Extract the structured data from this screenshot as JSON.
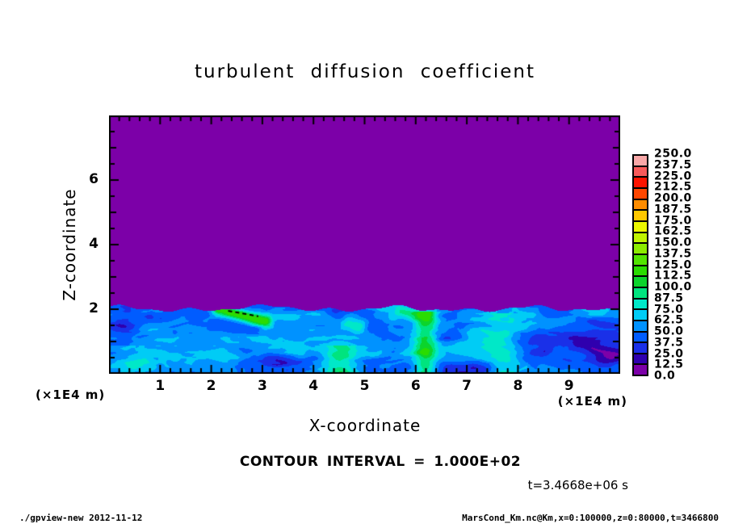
{
  "header": {
    "title": "turbulent diffusion coefficient"
  },
  "axes": {
    "x": {
      "label": "X-coordinate",
      "unit": "(×1E4 m)",
      "range": [
        0,
        10
      ],
      "major_tick_labels": [
        "1",
        "2",
        "3",
        "4",
        "5",
        "6",
        "7",
        "8",
        "9"
      ],
      "minor_step": 0.2
    },
    "z": {
      "label": "Z-coordinate",
      "unit": "(×1E4 m)",
      "range": [
        0,
        8
      ],
      "major_tick_labels": [
        "2",
        "4",
        "6"
      ],
      "major_ticks": [
        2,
        4,
        6
      ],
      "minor_step": 0.5
    }
  },
  "annotations": {
    "contour_interval": "CONTOUR INTERVAL = 1.000E+02",
    "time": "t=3.4668e+06 s"
  },
  "footer": {
    "left": "./gpview-new  2012-11-12",
    "right": "MarsCond_Km.nc@Km,x=0:100000,z=0:80000,t=3466800"
  },
  "colorbar": {
    "labels_top_to_bottom": [
      "250.0",
      "237.5",
      "225.0",
      "212.5",
      "200.0",
      "187.5",
      "175.0",
      "162.5",
      "150.0",
      "137.5",
      "125.0",
      "112.5",
      "100.0",
      "87.5",
      "75.0",
      "62.5",
      "50.0",
      "37.5",
      "25.0",
      "12.5",
      "0.0"
    ]
  },
  "chart_data": {
    "type": "heatmap",
    "title": "turbulent diffusion coefficient",
    "xlabel": "X-coordinate (×1E4 m)",
    "ylabel": "Z-coordinate (×1E4 m)",
    "xlim": [
      0,
      10
    ],
    "zlim": [
      0,
      8
    ],
    "grid": false,
    "legend_position": "right-colorbar",
    "contour_interval": 100.0,
    "time_label": "t=3.4668e+06 s",
    "levels": {
      "min": 0.0,
      "max": 250.0,
      "step": 12.5
    },
    "colormap_low_to_high": [
      "#7C00A8",
      "#2F00AE",
      "#1A30E8",
      "#005CFF",
      "#0092FF",
      "#00CCF5",
      "#00E8C8",
      "#00E47E",
      "#0CD42C",
      "#2ADC00",
      "#52E400",
      "#8CEC00",
      "#C0F400",
      "#ECF800",
      "#FFC800",
      "#FF8C00",
      "#FF4600",
      "#FF1400",
      "#F85A5A",
      "#F8A8A8"
    ],
    "field": {
      "background_value": 4,
      "boundary_layer_top_z": 2.02,
      "interface_waves": [
        {
          "a": 0.05,
          "k": 2.3,
          "p": 1.3
        },
        {
          "a": 0.05,
          "k": 4.7,
          "p": 0.5
        },
        {
          "a": 0.035,
          "k": 9.1,
          "p": 0.0
        }
      ],
      "interface_bump": {
        "x": 3.4,
        "sx": 0.28,
        "a": 0.1
      },
      "noise": {
        "base": 16,
        "fbm_amp": 55,
        "large_amp": 16,
        "warp_amp": 2.2,
        "scale_x": 1.3,
        "scale_z": 2.6,
        "large_sx": 0.55,
        "large_sz": 0.85
      },
      "plumes": [
        {
          "x": 6.18,
          "sx": 0.16,
          "zmax": 1.95,
          "amp": 55
        },
        {
          "x": 4.55,
          "sx": 0.22,
          "zmax": 0.9,
          "amp": 42
        },
        {
          "x": 0.35,
          "sx": 0.32,
          "zmax": 0.9,
          "amp": 20
        },
        {
          "x": 7.65,
          "sx": 0.28,
          "zmax": 1.9,
          "amp": 26
        }
      ],
      "streaks": [
        {
          "x1": 2.15,
          "z1": 2.0,
          "x2": 3.05,
          "z2": 1.62,
          "w": 0.1,
          "amp": 80
        },
        {
          "x1": 5.7,
          "z1": 1.95,
          "x2": 6.25,
          "z2": 1.8,
          "w": 0.1,
          "amp": 34
        },
        {
          "x1": 4.68,
          "z1": 1.6,
          "x2": 4.88,
          "z2": 1.5,
          "w": 0.12,
          "amp": 45
        }
      ],
      "darks": [
        {
          "x": 3.3,
          "z": 0.35,
          "rx": 0.55,
          "rz": 0.3,
          "amp": -30
        },
        {
          "x": 8.9,
          "z": 1.05,
          "rx": 0.75,
          "rz": 0.5,
          "amp": -34
        },
        {
          "x": 9.8,
          "z": 0.55,
          "rx": 0.45,
          "rz": 0.5,
          "amp": -26
        },
        {
          "x": 0.22,
          "z": 1.5,
          "rx": 0.28,
          "rz": 0.2,
          "amp": -24
        },
        {
          "x": 7.0,
          "z": 0.15,
          "rx": 0.5,
          "rz": 0.2,
          "amp": -16
        }
      ],
      "contour_dashes": {
        "x1": 2.33,
        "z1": 1.95,
        "x2": 2.92,
        "z2": 1.78
      }
    }
  }
}
